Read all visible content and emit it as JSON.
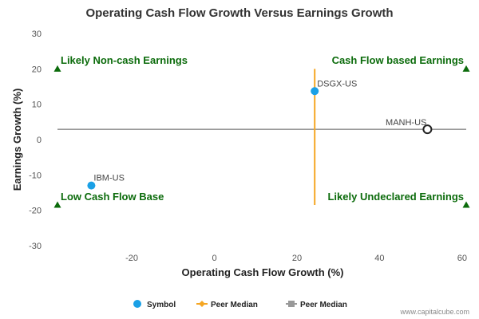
{
  "chart_data": {
    "type": "scatter",
    "title": "Operating Cash Flow Growth Versus Earnings Growth",
    "xlabel": "Operating Cash Flow Growth (%)",
    "ylabel": "Earnings Growth (%)",
    "xlim": [
      -38,
      61
    ],
    "ylim": [
      -30,
      30
    ],
    "x_ticks": [
      -20,
      0,
      20,
      40,
      60
    ],
    "y_ticks": [
      30,
      20,
      10,
      0,
      -10,
      -20,
      -30
    ],
    "grid": false,
    "points": [
      {
        "label": "DSGX-US",
        "x": 24.3,
        "y": 13.7,
        "style": "filled",
        "color": "#1aa0e6"
      },
      {
        "label": "MANH-US",
        "x": 51.6,
        "y": 2.9,
        "style": "hollow",
        "color": "#222222"
      },
      {
        "label": "IBM-US",
        "x": -29.8,
        "y": -13.0,
        "style": "filled",
        "color": "#1aa0e6"
      }
    ],
    "peer_median_x": 24.3,
    "peer_median_y": 2.9,
    "quadrant_labels": {
      "top_left": "Likely Non-cash Earnings",
      "top_right": "Cash Flow based Earnings",
      "bottom_left": "Low Cash Flow Base",
      "bottom_right": "Likely Undeclared Earnings"
    },
    "legend": [
      {
        "label": "Symbol",
        "color": "#1aa0e6",
        "marker": "circle"
      },
      {
        "label": "Peer Median",
        "color": "#f5a623",
        "marker": "line-diamond"
      },
      {
        "label": "Peer Median",
        "color": "#999999",
        "marker": "line-square"
      }
    ],
    "colors": {
      "vertical_median": "#f5a623",
      "horizontal_median": "#999999",
      "quadrant_text": "#0b6b0b",
      "triangle": "#0b6b0b"
    }
  },
  "credit": "www.capitalcube.com"
}
